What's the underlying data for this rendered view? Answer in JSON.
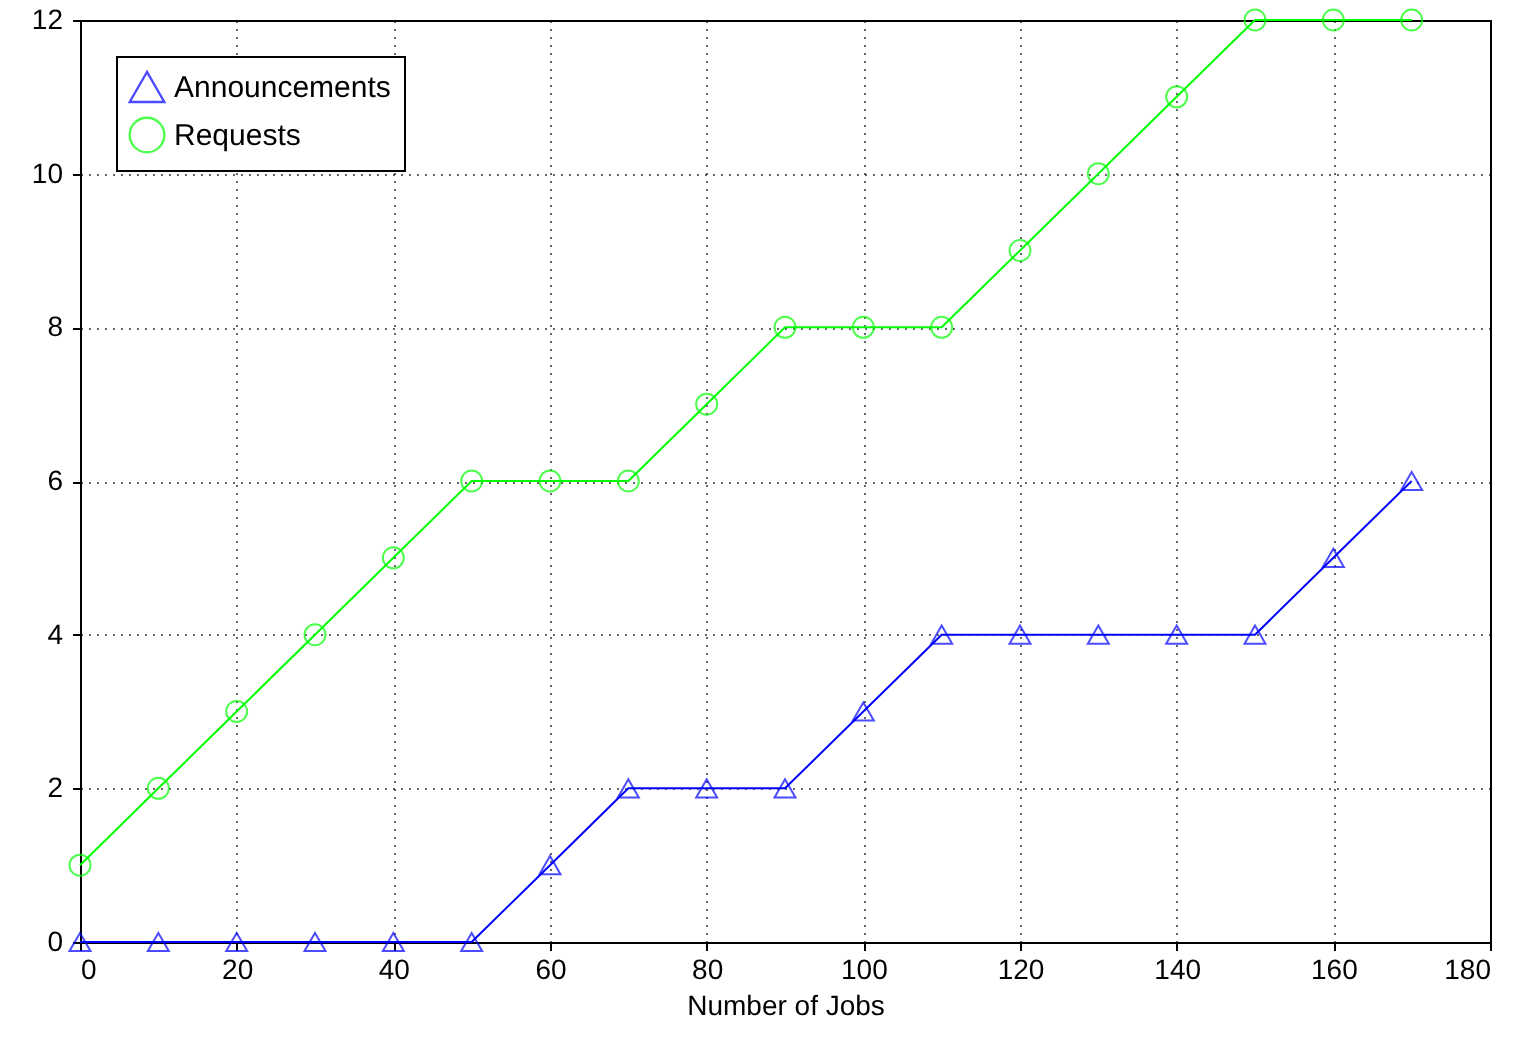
{
  "chart_data": {
    "type": "line",
    "xlabel": "Number of Jobs",
    "x": [
      0,
      10,
      20,
      30,
      40,
      50,
      60,
      70,
      80,
      90,
      100,
      110,
      120,
      130,
      140,
      150,
      160,
      170
    ],
    "series": [
      {
        "name": "Announcements",
        "color": "#0000ff",
        "marker": "triangle",
        "values": [
          0,
          0,
          0,
          0,
          0,
          0,
          1,
          2,
          2,
          2,
          3,
          4,
          4,
          4,
          4,
          4,
          5,
          6
        ]
      },
      {
        "name": "Requests",
        "color": "#00ff00",
        "marker": "circle",
        "values": [
          1,
          2,
          3,
          4,
          5,
          6,
          6,
          6,
          7,
          8,
          8,
          8,
          9,
          10,
          11,
          12,
          12,
          12
        ]
      }
    ],
    "xlim": [
      0,
      180
    ],
    "xticks": [
      0,
      20,
      40,
      60,
      80,
      100,
      120,
      140,
      160,
      180
    ],
    "ylim": [
      0,
      12
    ],
    "yticks": [
      0,
      2,
      4,
      6,
      8,
      10,
      12
    ],
    "grid": true,
    "legend": "top left",
    "line_style": "solid"
  }
}
